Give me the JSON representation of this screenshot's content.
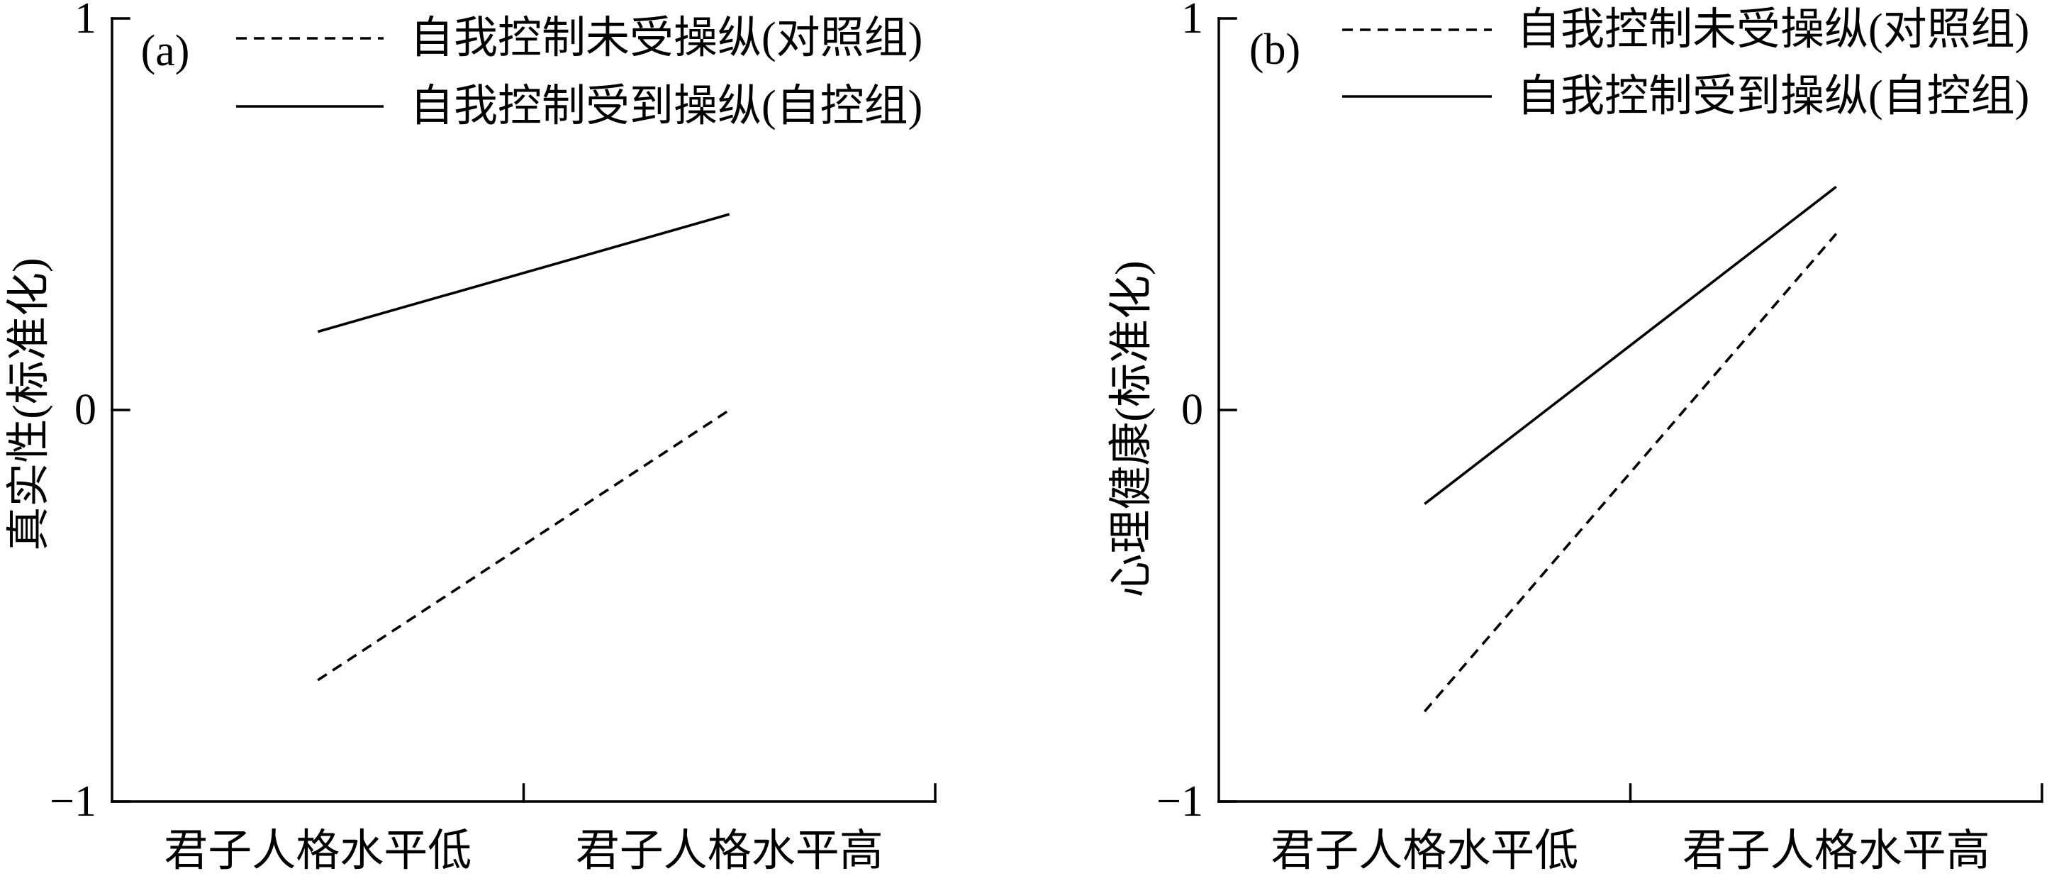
{
  "chart_data": [
    {
      "type": "line",
      "panel_label": "(a)",
      "ylabel": "真实性(标准化)",
      "categories": [
        "君子人格水平低",
        "君子人格水平高"
      ],
      "ylim": [
        -1,
        1
      ],
      "yticks": [
        {
          "value": 1,
          "label": "1"
        },
        {
          "value": 0,
          "label": "0"
        },
        {
          "value": -1,
          "label": "−1"
        }
      ],
      "series": [
        {
          "name": "自我控制未受操纵(对照组)",
          "line_style": "dashed",
          "color": "#000000",
          "values": [
            -0.69,
            0.0
          ]
        },
        {
          "name": "自我控制受到操纵(自控组)",
          "line_style": "solid",
          "color": "#000000",
          "values": [
            0.2,
            0.5
          ]
        }
      ],
      "legend": "top",
      "grid": false
    },
    {
      "type": "line",
      "panel_label": "(b)",
      "ylabel": "心理健康(标准化)",
      "categories": [
        "君子人格水平低",
        "君子人格水平高"
      ],
      "ylim": [
        -1,
        1
      ],
      "yticks": [
        {
          "value": 1,
          "label": "1"
        },
        {
          "value": 0,
          "label": "0"
        },
        {
          "value": -1,
          "label": "−1"
        }
      ],
      "series": [
        {
          "name": "自我控制未受操纵(对照组)",
          "line_style": "dashed",
          "color": "#000000",
          "values": [
            -0.77,
            0.45
          ]
        },
        {
          "name": "自我控制受到操纵(自控组)",
          "line_style": "solid",
          "color": "#000000",
          "values": [
            -0.24,
            0.57
          ]
        }
      ],
      "legend": "top",
      "grid": false
    }
  ]
}
